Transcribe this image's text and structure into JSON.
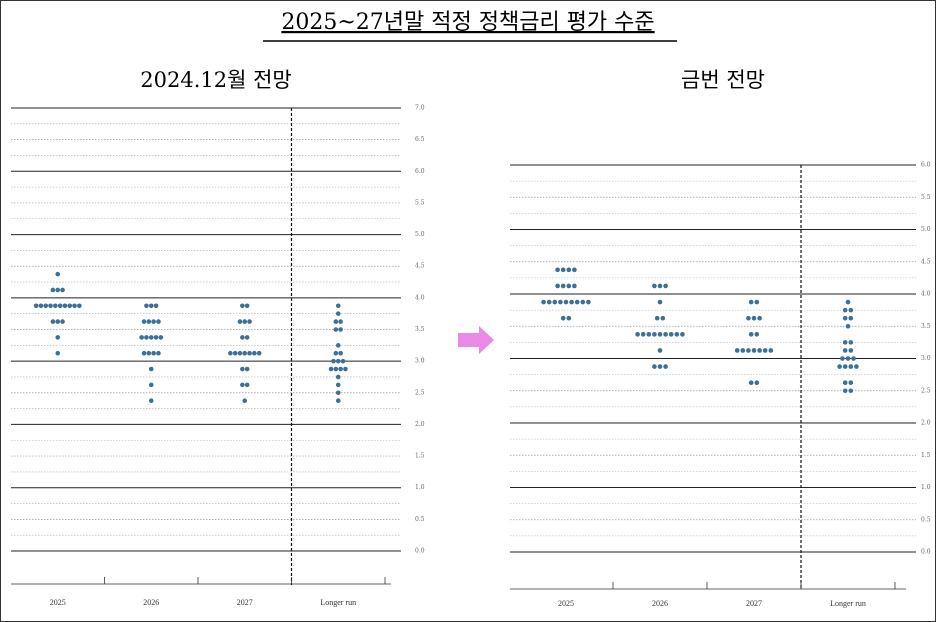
{
  "title": "2025~27년말 적정 정책금리 평가 수준",
  "chart_data": [
    {
      "type": "dot",
      "title": "2024.12월 전망",
      "categories": [
        "2025",
        "2026",
        "2027",
        "Longer run"
      ],
      "values": [
        [
          4.375,
          4.125,
          4.125,
          4.125,
          3.875,
          3.875,
          3.875,
          3.875,
          3.875,
          3.875,
          3.875,
          3.875,
          3.875,
          3.875,
          3.625,
          3.625,
          3.625,
          3.375,
          3.125
        ],
        [
          3.875,
          3.875,
          3.875,
          3.625,
          3.625,
          3.625,
          3.625,
          3.375,
          3.375,
          3.375,
          3.375,
          3.375,
          3.125,
          3.125,
          3.125,
          3.125,
          2.875,
          2.625,
          2.375
        ],
        [
          3.875,
          3.875,
          3.625,
          3.625,
          3.625,
          3.375,
          3.375,
          3.125,
          3.125,
          3.125,
          3.125,
          3.125,
          3.125,
          3.125,
          2.875,
          2.875,
          2.625,
          2.625,
          2.375
        ],
        [
          3.875,
          3.75,
          3.625,
          3.625,
          3.5,
          3.5,
          3.25,
          3.125,
          3.125,
          3.0,
          3.0,
          3.0,
          2.875,
          2.875,
          2.875,
          2.875,
          2.75,
          2.625,
          2.5,
          2.375
        ]
      ],
      "color": "#3b7098",
      "ylim": [
        0,
        7
      ],
      "yticks": [
        {
          "value": 0,
          "label": "0.0"
        },
        {
          "value": 0.5,
          "label": "0.5"
        },
        {
          "value": 1,
          "label": "1.0"
        },
        {
          "value": 1.5,
          "label": "1.5"
        },
        {
          "value": 2,
          "label": "2.0"
        },
        {
          "value": 2.5,
          "label": "2.5"
        },
        {
          "value": 3,
          "label": "3.0"
        },
        {
          "value": 3.5,
          "label": "3.5"
        },
        {
          "value": 4,
          "label": "4.0"
        },
        {
          "value": 4.5,
          "label": "4.5"
        },
        {
          "value": 5,
          "label": "5.0"
        },
        {
          "value": 5.5,
          "label": "5.5"
        },
        {
          "value": 6,
          "label": "6.0"
        },
        {
          "value": 6.5,
          "label": "6.5"
        },
        {
          "value": 7,
          "label": "7.0"
        }
      ]
    },
    {
      "type": "dot",
      "title": "금번 전망",
      "categories": [
        "2025",
        "2026",
        "2027",
        "Longer run"
      ],
      "values": [
        [
          4.375,
          4.375,
          4.375,
          4.375,
          4.125,
          4.125,
          4.125,
          4.125,
          3.875,
          3.875,
          3.875,
          3.875,
          3.875,
          3.875,
          3.875,
          3.875,
          3.875,
          3.625,
          3.625
        ],
        [
          4.125,
          4.125,
          4.125,
          3.875,
          3.625,
          3.625,
          3.375,
          3.375,
          3.375,
          3.375,
          3.375,
          3.375,
          3.375,
          3.375,
          3.375,
          3.125,
          2.875,
          2.875,
          2.875
        ],
        [
          3.875,
          3.875,
          3.625,
          3.625,
          3.625,
          3.375,
          3.375,
          3.125,
          3.125,
          3.125,
          3.125,
          3.125,
          3.125,
          3.125,
          2.625,
          2.625
        ],
        [
          3.875,
          3.75,
          3.75,
          3.625,
          3.625,
          3.5,
          3.25,
          3.25,
          3.125,
          3.125,
          3.0,
          3.0,
          3.0,
          2.875,
          2.875,
          2.875,
          2.875,
          2.625,
          2.625,
          2.5,
          2.5
        ]
      ],
      "color": "#3b7098",
      "ylim": [
        0,
        6
      ],
      "yticks": [
        {
          "value": 0,
          "label": "0.0"
        },
        {
          "value": 0.5,
          "label": "0.5"
        },
        {
          "value": 1,
          "label": "1.0"
        },
        {
          "value": 1.5,
          "label": "1.5"
        },
        {
          "value": 2,
          "label": "2.0"
        },
        {
          "value": 2.5,
          "label": "2.5"
        },
        {
          "value": 3,
          "label": "3.0"
        },
        {
          "value": 3.5,
          "label": "3.5"
        },
        {
          "value": 4,
          "label": "4.0"
        },
        {
          "value": 4.5,
          "label": "4.5"
        },
        {
          "value": 5,
          "label": "5.0"
        },
        {
          "value": 5.5,
          "label": "5.5"
        },
        {
          "value": 6,
          "label": "6.0"
        }
      ]
    }
  ]
}
